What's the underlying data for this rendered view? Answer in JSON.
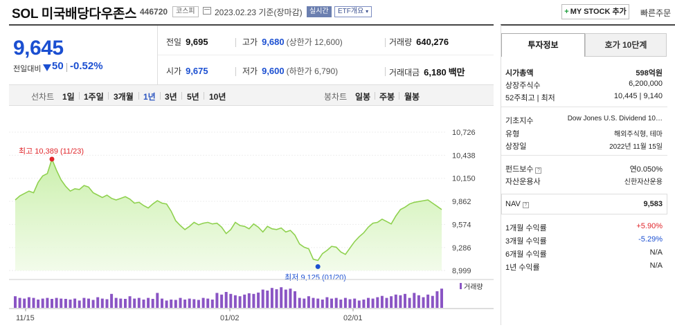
{
  "header": {
    "title": "SOL 미국배당다우존스",
    "code": "446720",
    "market": "코스피",
    "date": "2023.02.23",
    "date_suffix": "기준(장마감)",
    "live_badge": "실시간",
    "etf_badge": "ETF개요",
    "my_stock_label": "MY STOCK 추가",
    "quick_order": "빠른주문"
  },
  "price": {
    "current": "9,645",
    "change_label": "전일대비",
    "change": "50",
    "change_rate": "-0.52%"
  },
  "stats": {
    "prev_label": "전일",
    "prev": "9,695",
    "high_label": "고가",
    "high": "9,680",
    "upper_limit": "(상한가 12,600)",
    "volume_label": "거래량",
    "volume": "640,276",
    "open_label": "시가",
    "open": "9,675",
    "low_label": "저가",
    "low": "9,600",
    "lower_limit": "(하한가 6,790)",
    "amount_label": "거래대금",
    "amount": "6,180",
    "amount_unit": "백만"
  },
  "periods": {
    "line_label": "선차트",
    "items": [
      "1일",
      "1주일",
      "3개월",
      "1년",
      "3년",
      "5년",
      "10년"
    ],
    "active": "1년",
    "candle_label": "봉차트",
    "candle_items": [
      "일봉",
      "주봉",
      "월봉"
    ]
  },
  "colors": {
    "accent": "#1b4fd1",
    "up": "#e0252a",
    "line": "#8fd14f",
    "volume": "#8a55c4"
  },
  "chart_data": {
    "type": "area",
    "y_ticks": [
      "10,726",
      "10,438",
      "10,150",
      "9,862",
      "9,574",
      "9,286",
      "8,999"
    ],
    "ylim": [
      8999,
      10726
    ],
    "x_labels": [
      "11/15",
      "01/02",
      "02/01"
    ],
    "high_annotation": "최고 10,389 (11/23)",
    "low_annotation": "최저 9,125 (01/20)",
    "volume_label": "거래량",
    "values": [
      9880,
      9930,
      9960,
      9990,
      9970,
      10100,
      10180,
      10210,
      10389,
      10250,
      10130,
      10050,
      9990,
      10020,
      10010,
      10060,
      10040,
      9970,
      9940,
      9910,
      9940,
      9900,
      9880,
      9900,
      9920,
      9890,
      9840,
      9850,
      9810,
      9780,
      9830,
      9870,
      9840,
      9830,
      9740,
      9620,
      9560,
      9510,
      9550,
      9600,
      9570,
      9590,
      9600,
      9580,
      9590,
      9540,
      9460,
      9510,
      9600,
      9560,
      9550,
      9520,
      9580,
      9540,
      9480,
      9550,
      9520,
      9510,
      9530,
      9480,
      9500,
      9440,
      9330,
      9290,
      9270,
      9140,
      9125,
      9210,
      9250,
      9300,
      9290,
      9230,
      9200,
      9280,
      9360,
      9420,
      9470,
      9540,
      9590,
      9600,
      9640,
      9610,
      9580,
      9680,
      9760,
      9790,
      9830,
      9850,
      9860,
      9870,
      9880,
      9840,
      9800,
      9760
    ],
    "volumes": [
      35,
      30,
      28,
      32,
      30,
      25,
      28,
      30,
      27,
      30,
      28,
      27,
      25,
      28,
      22,
      30,
      28,
      24,
      32,
      28,
      26,
      42,
      30,
      28,
      27,
      35,
      28,
      30,
      25,
      30,
      27,
      45,
      28,
      22,
      25,
      24,
      30,
      25,
      28,
      26,
      24,
      30,
      28,
      25,
      45,
      40,
      48,
      42,
      38,
      35,
      40,
      44,
      42,
      46,
      55,
      52,
      60,
      56,
      62,
      55,
      58,
      50,
      30,
      28,
      35,
      30,
      28,
      25,
      32,
      28,
      30,
      25,
      30,
      26,
      28,
      22,
      25,
      30,
      28,
      32,
      36,
      30,
      35,
      40,
      38,
      42,
      30,
      45,
      38,
      32,
      40,
      36,
      50,
      58
    ]
  },
  "side": {
    "tab_invest": "투자정보",
    "tab_hoga": "호가 10단계",
    "market_cap_label": "시가총액",
    "market_cap": "598억원",
    "shares_label": "상장주식수",
    "shares": "6,200,000",
    "range52_label": "52주최고 | 최저",
    "range52": "10,445 | 9,140",
    "index_label": "기초지수",
    "index": "Dow Jones U.S. Dividend 10…",
    "type_label": "유형",
    "type": "해외주식형, 테마",
    "listing_label": "상장일",
    "listing": "2022년 11월 15일",
    "fee_label": "펀드보수",
    "fee": "연0.050%",
    "company_label": "자산운용사",
    "company": "신한자산운용",
    "nav_label": "NAV",
    "nav": "9,583",
    "ret1_label": "1개월 수익률",
    "ret1": "+5.90%",
    "ret3_label": "3개월 수익률",
    "ret3": "-5.29%",
    "ret6_label": "6개월 수익률",
    "ret6": "N/A",
    "ret12_label": "1년 수익률",
    "ret12": "N/A",
    "q_mark": "?"
  }
}
